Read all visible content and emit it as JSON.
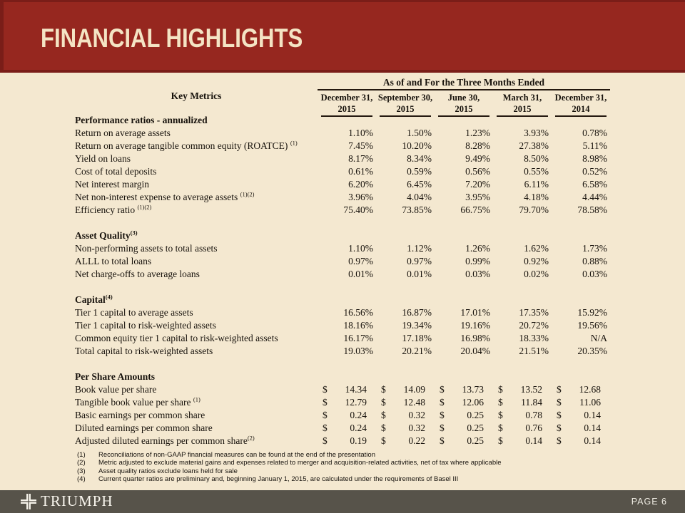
{
  "slide": {
    "title": "FINANCIAL HIGHLIGHTS",
    "brand": "TRIUMPH",
    "page_label": "PAGE 6"
  },
  "colors": {
    "header_red": "#96271F",
    "header_red_dark": "#7A1D18",
    "body_tan": "#F4E8D0",
    "footer_gray": "#57534A",
    "title_cream": "#F4E4C4"
  },
  "table": {
    "key_metrics_label": "Key Metrics",
    "span_header": "As of and For the Three Months Ended",
    "currency_symbol": "$",
    "columns": [
      {
        "line1": "December 31,",
        "line2": "2015"
      },
      {
        "line1": "September 30,",
        "line2": "2015"
      },
      {
        "line1": "June 30,",
        "line2": "2015"
      },
      {
        "line1": "March 31,",
        "line2": "2015"
      },
      {
        "line1": "December 31,",
        "line2": "2014"
      }
    ],
    "rows": [
      {
        "type": "section",
        "label": "Performance ratios - annualized"
      },
      {
        "type": "ratio",
        "label": "Return on average assets",
        "values": [
          "1.10%",
          "1.50%",
          "1.23%",
          "3.93%",
          "0.78%"
        ]
      },
      {
        "type": "ratio",
        "label": "Return on average tangible common equity (ROATCE) ",
        "sup": "(1)",
        "values": [
          "7.45%",
          "10.20%",
          "8.28%",
          "27.38%",
          "5.11%"
        ]
      },
      {
        "type": "ratio",
        "label": "Yield on loans",
        "values": [
          "8.17%",
          "8.34%",
          "9.49%",
          "8.50%",
          "8.98%"
        ]
      },
      {
        "type": "ratio",
        "label": "Cost of total deposits",
        "values": [
          "0.61%",
          "0.59%",
          "0.56%",
          "0.55%",
          "0.52%"
        ]
      },
      {
        "type": "ratio",
        "label": "Net interest margin",
        "values": [
          "6.20%",
          "6.45%",
          "7.20%",
          "6.11%",
          "6.58%"
        ]
      },
      {
        "type": "ratio",
        "label": "Net non-interest expense to average assets ",
        "sup": "(1)(2)",
        "values": [
          "3.96%",
          "4.04%",
          "3.95%",
          "4.18%",
          "4.44%"
        ]
      },
      {
        "type": "ratio",
        "label": "Efficiency ratio ",
        "sup": "(1)(2)",
        "values": [
          "75.40%",
          "73.85%",
          "66.75%",
          "79.70%",
          "78.58%"
        ]
      },
      {
        "type": "spacer"
      },
      {
        "type": "section",
        "label": "Asset Quality",
        "sup": "(3)"
      },
      {
        "type": "ratio",
        "label": "Non-performing assets to total assets",
        "values": [
          "1.10%",
          "1.12%",
          "1.26%",
          "1.62%",
          "1.73%"
        ]
      },
      {
        "type": "ratio",
        "label": "ALLL to total loans",
        "values": [
          "0.97%",
          "0.97%",
          "0.99%",
          "0.92%",
          "0.88%"
        ]
      },
      {
        "type": "ratio",
        "label": "Net charge-offs to average loans",
        "values": [
          "0.01%",
          "0.01%",
          "0.03%",
          "0.02%",
          "0.03%"
        ]
      },
      {
        "type": "spacer"
      },
      {
        "type": "section",
        "label": "Capital",
        "sup": "(4)"
      },
      {
        "type": "ratio",
        "label": "Tier 1 capital to average assets",
        "values": [
          "16.56%",
          "16.87%",
          "17.01%",
          "17.35%",
          "15.92%"
        ]
      },
      {
        "type": "ratio",
        "label": "Tier 1 capital to risk-weighted assets",
        "values": [
          "18.16%",
          "19.34%",
          "19.16%",
          "20.72%",
          "19.56%"
        ]
      },
      {
        "type": "ratio",
        "label": "Common equity tier 1 capital to risk-weighted assets",
        "values": [
          "16.17%",
          "17.18%",
          "16.98%",
          "18.33%",
          "N/A"
        ]
      },
      {
        "type": "ratio",
        "label": "Total capital to risk-weighted assets",
        "values": [
          "19.03%",
          "20.21%",
          "20.04%",
          "21.51%",
          "20.35%"
        ]
      },
      {
        "type": "spacer"
      },
      {
        "type": "section",
        "label": "Per Share Amounts"
      },
      {
        "type": "dollar",
        "label": "Book value per share",
        "values": [
          "14.34",
          "14.09",
          "13.73",
          "13.52",
          "12.68"
        ]
      },
      {
        "type": "dollar",
        "label": "Tangible book value per share ",
        "sup": "(1)",
        "values": [
          "12.79",
          "12.48",
          "12.06",
          "11.84",
          "11.06"
        ]
      },
      {
        "type": "dollar",
        "label": "Basic earnings per common share",
        "values": [
          "0.24",
          "0.32",
          "0.25",
          "0.78",
          "0.14"
        ]
      },
      {
        "type": "dollar",
        "label": "Diluted earnings per common share",
        "values": [
          "0.24",
          "0.32",
          "0.25",
          "0.76",
          "0.14"
        ]
      },
      {
        "type": "dollar",
        "label": "Adjusted diluted earnings per common share",
        "sup": "(2)",
        "values": [
          "0.19",
          "0.22",
          "0.25",
          "0.14",
          "0.14"
        ]
      }
    ]
  },
  "footnotes": [
    {
      "num": "(1)",
      "text": "Reconciliations of non-GAAP financial measures can be found at the end of the presentation"
    },
    {
      "num": "(2)",
      "text": "Metric adjusted to exclude material gains and expenses related to merger and acquisition-related activities, net of tax where applicable"
    },
    {
      "num": "(3)",
      "text": "Asset quality ratios exclude loans held for sale"
    },
    {
      "num": "(4)",
      "text": "Current quarter ratios are preliminary and, beginning January 1, 2015, are calculated under the requirements of Basel III"
    }
  ]
}
